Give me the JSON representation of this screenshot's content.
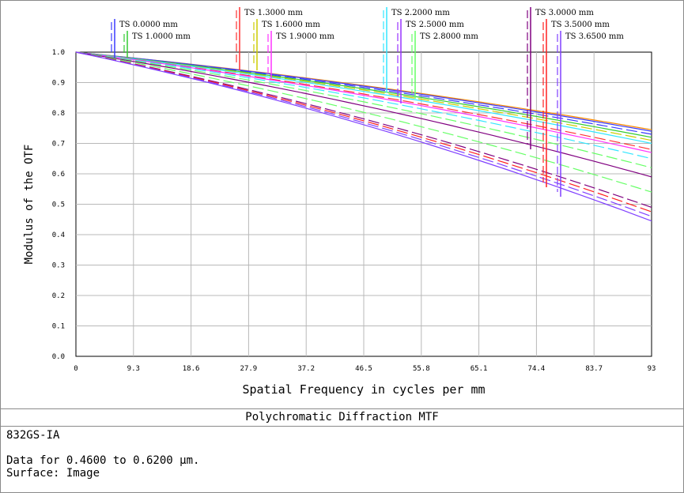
{
  "chart_data": {
    "type": "line",
    "title": "Polychromatic Diffraction MTF",
    "xlabel": "Spatial Frequency in cycles per mm",
    "ylabel": "Modulus of the OTF",
    "xlim": [
      0,
      93
    ],
    "ylim": [
      0,
      1.0
    ],
    "x_ticks": [
      "0",
      "9.3",
      "18.6",
      "27.9",
      "37.2",
      "46.5",
      "55.8",
      "65.1",
      "74.4",
      "83.7",
      "93"
    ],
    "y_ticks": [
      "0.0",
      "0.1",
      "0.2",
      "0.3",
      "0.4",
      "0.5",
      "0.6",
      "0.7",
      "0.8",
      "0.9",
      "1.0"
    ],
    "grid": true,
    "legend": [
      {
        "label": "TS 0.0000 mm",
        "color": "#3b3bff"
      },
      {
        "label": "TS 1.0000 mm",
        "color": "#33cc33"
      },
      {
        "label": "TS 1.3000 mm",
        "color": "#ff3333"
      },
      {
        "label": "TS 1.6000 mm",
        "color": "#cccc00"
      },
      {
        "label": "TS 1.9000 mm",
        "color": "#ff33ff"
      },
      {
        "label": "TS 2.2000 mm",
        "color": "#33e6ff"
      },
      {
        "label": "TS 2.5000 mm",
        "color": "#9933ff"
      },
      {
        "label": "TS 2.8000 mm",
        "color": "#66ff66"
      },
      {
        "label": "TS 3.0000 mm",
        "color": "#800080"
      },
      {
        "label": "TS 3.5000 mm",
        "color": "#ff2020"
      },
      {
        "label": "TS 3.6500 mm",
        "color": "#8040ff"
      }
    ],
    "series": [
      {
        "x": [
          0,
          93
        ],
        "color": "#ff8c00",
        "style": "solid",
        "y": [
          1.0,
          0.745
        ]
      },
      {
        "x": [
          0,
          93
        ],
        "color": "#3b3bff",
        "style": "solid",
        "y": [
          1.0,
          0.74
        ]
      },
      {
        "x": [
          0,
          93
        ],
        "color": "#3b3bff",
        "style": "dashed",
        "y": [
          1.0,
          0.73
        ]
      },
      {
        "x": [
          0,
          93
        ],
        "color": "#33cc33",
        "style": "solid",
        "y": [
          1.0,
          0.72
        ]
      },
      {
        "x": [
          0,
          93
        ],
        "color": "#cccc00",
        "style": "dashed",
        "y": [
          1.0,
          0.71
        ]
      },
      {
        "x": [
          0,
          93
        ],
        "color": "#33e6ff",
        "style": "solid",
        "y": [
          1.0,
          0.7
        ]
      },
      {
        "x": [
          0,
          93
        ],
        "color": "#ff3333",
        "style": "dashed",
        "y": [
          1.0,
          0.68
        ]
      },
      {
        "x": [
          0,
          93
        ],
        "color": "#ff33ff",
        "style": "solid",
        "y": [
          1.0,
          0.67
        ]
      },
      {
        "x": [
          0,
          93
        ],
        "color": "#33e6ff",
        "style": "dashed",
        "y": [
          1.0,
          0.65
        ]
      },
      {
        "x": [
          0,
          93
        ],
        "color": "#66ff66",
        "style": "dashed",
        "y": [
          1.0,
          0.62
        ]
      },
      {
        "x": [
          0,
          93
        ],
        "color": "#800080",
        "style": "solid",
        "y": [
          1.0,
          0.59
        ]
      },
      {
        "x": [
          0,
          93
        ],
        "color": "#66ff66",
        "style": "dashed",
        "y": [
          1.0,
          0.54
        ]
      },
      {
        "x": [
          0,
          93
        ],
        "color": "#800080",
        "style": "dashed",
        "y": [
          1.0,
          0.49
        ]
      },
      {
        "x": [
          0,
          93
        ],
        "color": "#ff2020",
        "style": "dashed",
        "y": [
          1.0,
          0.475
        ]
      },
      {
        "x": [
          0,
          93
        ],
        "color": "#8040ff",
        "style": "dashed",
        "y": [
          1.0,
          0.46
        ]
      },
      {
        "x": [
          0,
          93
        ],
        "color": "#8040ff",
        "style": "solid",
        "y": [
          1.0,
          0.445
        ]
      }
    ]
  },
  "info": {
    "line1": "832GS-IA",
    "line2": "Data for 0.4600 to 0.6200 µm.",
    "line3": "Surface: Image"
  }
}
